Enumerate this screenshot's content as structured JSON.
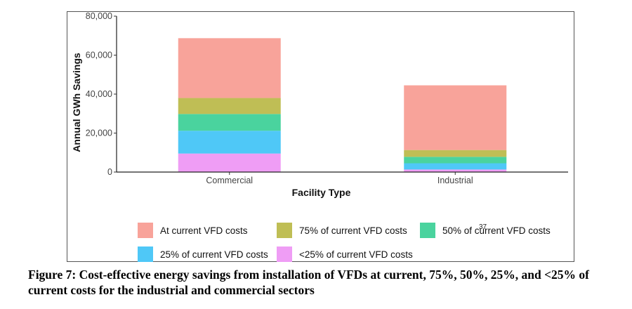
{
  "chart_data": {
    "type": "bar",
    "stacked": true,
    "categories": [
      "Commercial",
      "Industrial"
    ],
    "series": [
      {
        "name": "<25% of current VFD costs",
        "color": "#EF9DF5",
        "values": [
          9500,
          1300
        ]
      },
      {
        "name": "25% of current VFD costs",
        "color": "#4FC8F7",
        "values": [
          11700,
          3200
        ]
      },
      {
        "name": "50% of current VFD costs",
        "color": "#4AD39E",
        "values": [
          8600,
          3300
        ]
      },
      {
        "name": "75% of current VFD costs",
        "color": "#BFBE55",
        "values": [
          8200,
          3500
        ]
      },
      {
        "name": "At current VFD costs",
        "color": "#F8A39A",
        "values": [
          30700,
          33200
        ]
      }
    ],
    "legend_order": [
      "At current VFD costs",
      "75% of current VFD costs",
      "50% of current VFD costs",
      "25% of current VFD costs",
      "<25% of current VFD costs"
    ],
    "xlabel": "Facility Type",
    "ylabel": "Annual GWh Savings",
    "ylim": [
      0,
      80000
    ],
    "yticks": [
      "0",
      "20,000",
      "40,000",
      "60,000",
      "80,000"
    ],
    "ytick_values": [
      0,
      20000,
      40000,
      60000,
      80000
    ],
    "grid": false,
    "legend_position": "bottom"
  },
  "page_mark": "37",
  "caption": "Figure 7: Cost-effective energy savings from installation of VFDs at current, 75%, 50%, 25%, and <25% of current costs for the industrial and commercial sectors"
}
